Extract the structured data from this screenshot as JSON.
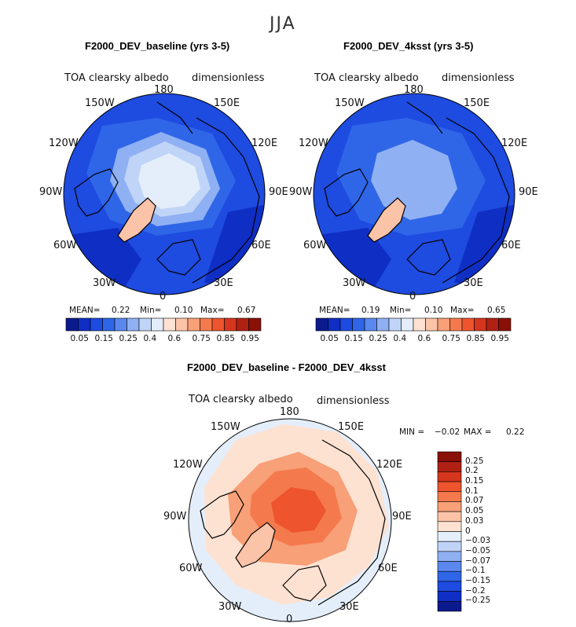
{
  "figure": {
    "season": "JJA"
  },
  "panels": [
    {
      "title": "F2000_DEV_baseline (yrs 3-5)",
      "variable": "TOA clearsky albedo",
      "units": "dimensionless",
      "stats": {
        "mean_label": "MEAN=",
        "mean": "0.22",
        "min_label": "Min=",
        "min": "0.10",
        "max_label": "Max=",
        "max": "0.67"
      }
    },
    {
      "title": "F2000_DEV_4ksst (yrs 3-5)",
      "variable": "TOA clearsky albedo",
      "units": "dimensionless",
      "stats": {
        "mean_label": "MEAN=",
        "mean": "0.19",
        "min_label": "Min=",
        "min": "0.10",
        "max_label": "Max=",
        "max": "0.65"
      }
    },
    {
      "title": "F2000_DEV_baseline - F2000_DEV_4ksst",
      "variable": "TOA clearsky albedo",
      "units": "dimensionless",
      "stats": {
        "min_label": "MIN =",
        "min": "−0.02",
        "max_label": "MAX =",
        "max": "0.22"
      }
    }
  ],
  "longitude_labels": [
    "180",
    "150E",
    "120E",
    "90E",
    "60E",
    "30E",
    "0",
    "30W",
    "60W",
    "90W",
    "120W",
    "150W"
  ],
  "colorbar_abs": {
    "ticks": [
      "0.05",
      "0.15",
      "0.25",
      "0.4",
      "0.6",
      "0.75",
      "0.85",
      "0.95"
    ],
    "colors": [
      "#0b1a8c",
      "#0f2ec4",
      "#1e4be0",
      "#2f66e8",
      "#5a88ee",
      "#8fb0f2",
      "#c0d4f7",
      "#e4eefb",
      "#fde2d2",
      "#fbc3a8",
      "#f8a078",
      "#f47a4e",
      "#ee542d",
      "#d5361d",
      "#b02114",
      "#8a1008"
    ]
  },
  "colorbar_diff": {
    "ticks": [
      "0.25",
      "0.2",
      "0.15",
      "0.1",
      "0.07",
      "0.05",
      "0.03",
      "0",
      "−0.03",
      "−0.05",
      "−0.07",
      "−0.1",
      "−0.15",
      "−0.2",
      "−0.25"
    ],
    "colors": [
      "#8a1008",
      "#b02114",
      "#d5361d",
      "#ee542d",
      "#f47a4e",
      "#f8a078",
      "#fbc3a8",
      "#fde2d2",
      "#e4eefb",
      "#c0d4f7",
      "#8fb0f2",
      "#5a88ee",
      "#2f66e8",
      "#1e4be0",
      "#0f2ec4",
      "#0b1a8c"
    ]
  },
  "colors": {
    "ocean_abs": "#1e4be0",
    "ocean_abs_dark": "#0f2ec4",
    "ocean_diff": "#e4eefb",
    "land_diff": "#fde2d2",
    "coast": "#000000"
  }
}
